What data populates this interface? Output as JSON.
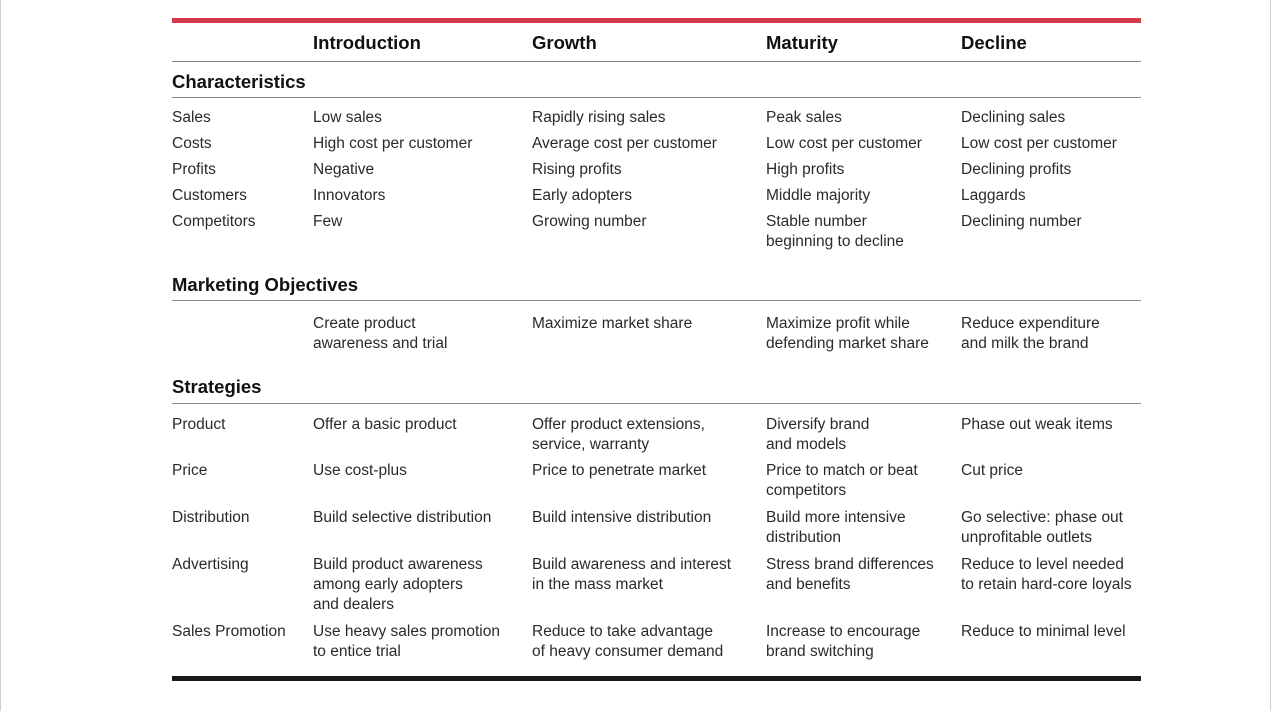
{
  "columns": [
    "Introduction",
    "Growth",
    "Maturity",
    "Decline"
  ],
  "sections": [
    {
      "title": "Characteristics",
      "rows": [
        {
          "label": "Sales",
          "cells": [
            "Low sales",
            "Rapidly rising sales",
            "Peak sales",
            "Declining sales"
          ]
        },
        {
          "label": "Costs",
          "cells": [
            "High cost per customer",
            "Average cost per customer",
            "Low cost per customer",
            "Low cost per customer"
          ]
        },
        {
          "label": "Profits",
          "cells": [
            "Negative",
            "Rising profits",
            "High profits",
            "Declining profits"
          ]
        },
        {
          "label": "Customers",
          "cells": [
            "Innovators",
            "Early adopters",
            "Middle majority",
            "Laggards"
          ]
        },
        {
          "label": "Competitors",
          "cells": [
            "Few",
            "Growing number",
            "Stable number\nbeginning to decline",
            "Declining number"
          ]
        }
      ]
    },
    {
      "title": "Marketing Objectives",
      "rows": [
        {
          "label": "",
          "cells": [
            "Create product\nawareness and trial",
            "Maximize market share",
            "Maximize profit while\ndefending market share",
            "Reduce expenditure\nand milk the brand"
          ]
        }
      ]
    },
    {
      "title": "Strategies",
      "rows": [
        {
          "label": "Product",
          "cells": [
            "Offer a basic product",
            "Offer product extensions,\nservice, warranty",
            "Diversify brand\nand models",
            "Phase out weak items"
          ]
        },
        {
          "label": "Price",
          "cells": [
            "Use cost-plus",
            "Price to penetrate market",
            "Price to match or beat\ncompetitors",
            "Cut price"
          ]
        },
        {
          "label": "Distribution",
          "cells": [
            "Build selective distribution",
            "Build intensive distribution",
            "Build more intensive\ndistribution",
            "Go selective: phase out\nunprofitable outlets"
          ]
        },
        {
          "label": "Advertising",
          "cells": [
            "Build product awareness\namong early adopters\nand dealers",
            "Build awareness and interest\nin the mass market",
            "Stress brand differences\nand benefits",
            "Reduce to level needed\nto retain hard-core loyals"
          ]
        },
        {
          "label": "Sales Promotion",
          "cells": [
            "Use heavy sales promotion\nto entice trial",
            "Reduce to take advantage\nof heavy consumer demand",
            "Increase to encourage\nbrand switching",
            "Reduce to minimal level"
          ]
        }
      ]
    }
  ]
}
